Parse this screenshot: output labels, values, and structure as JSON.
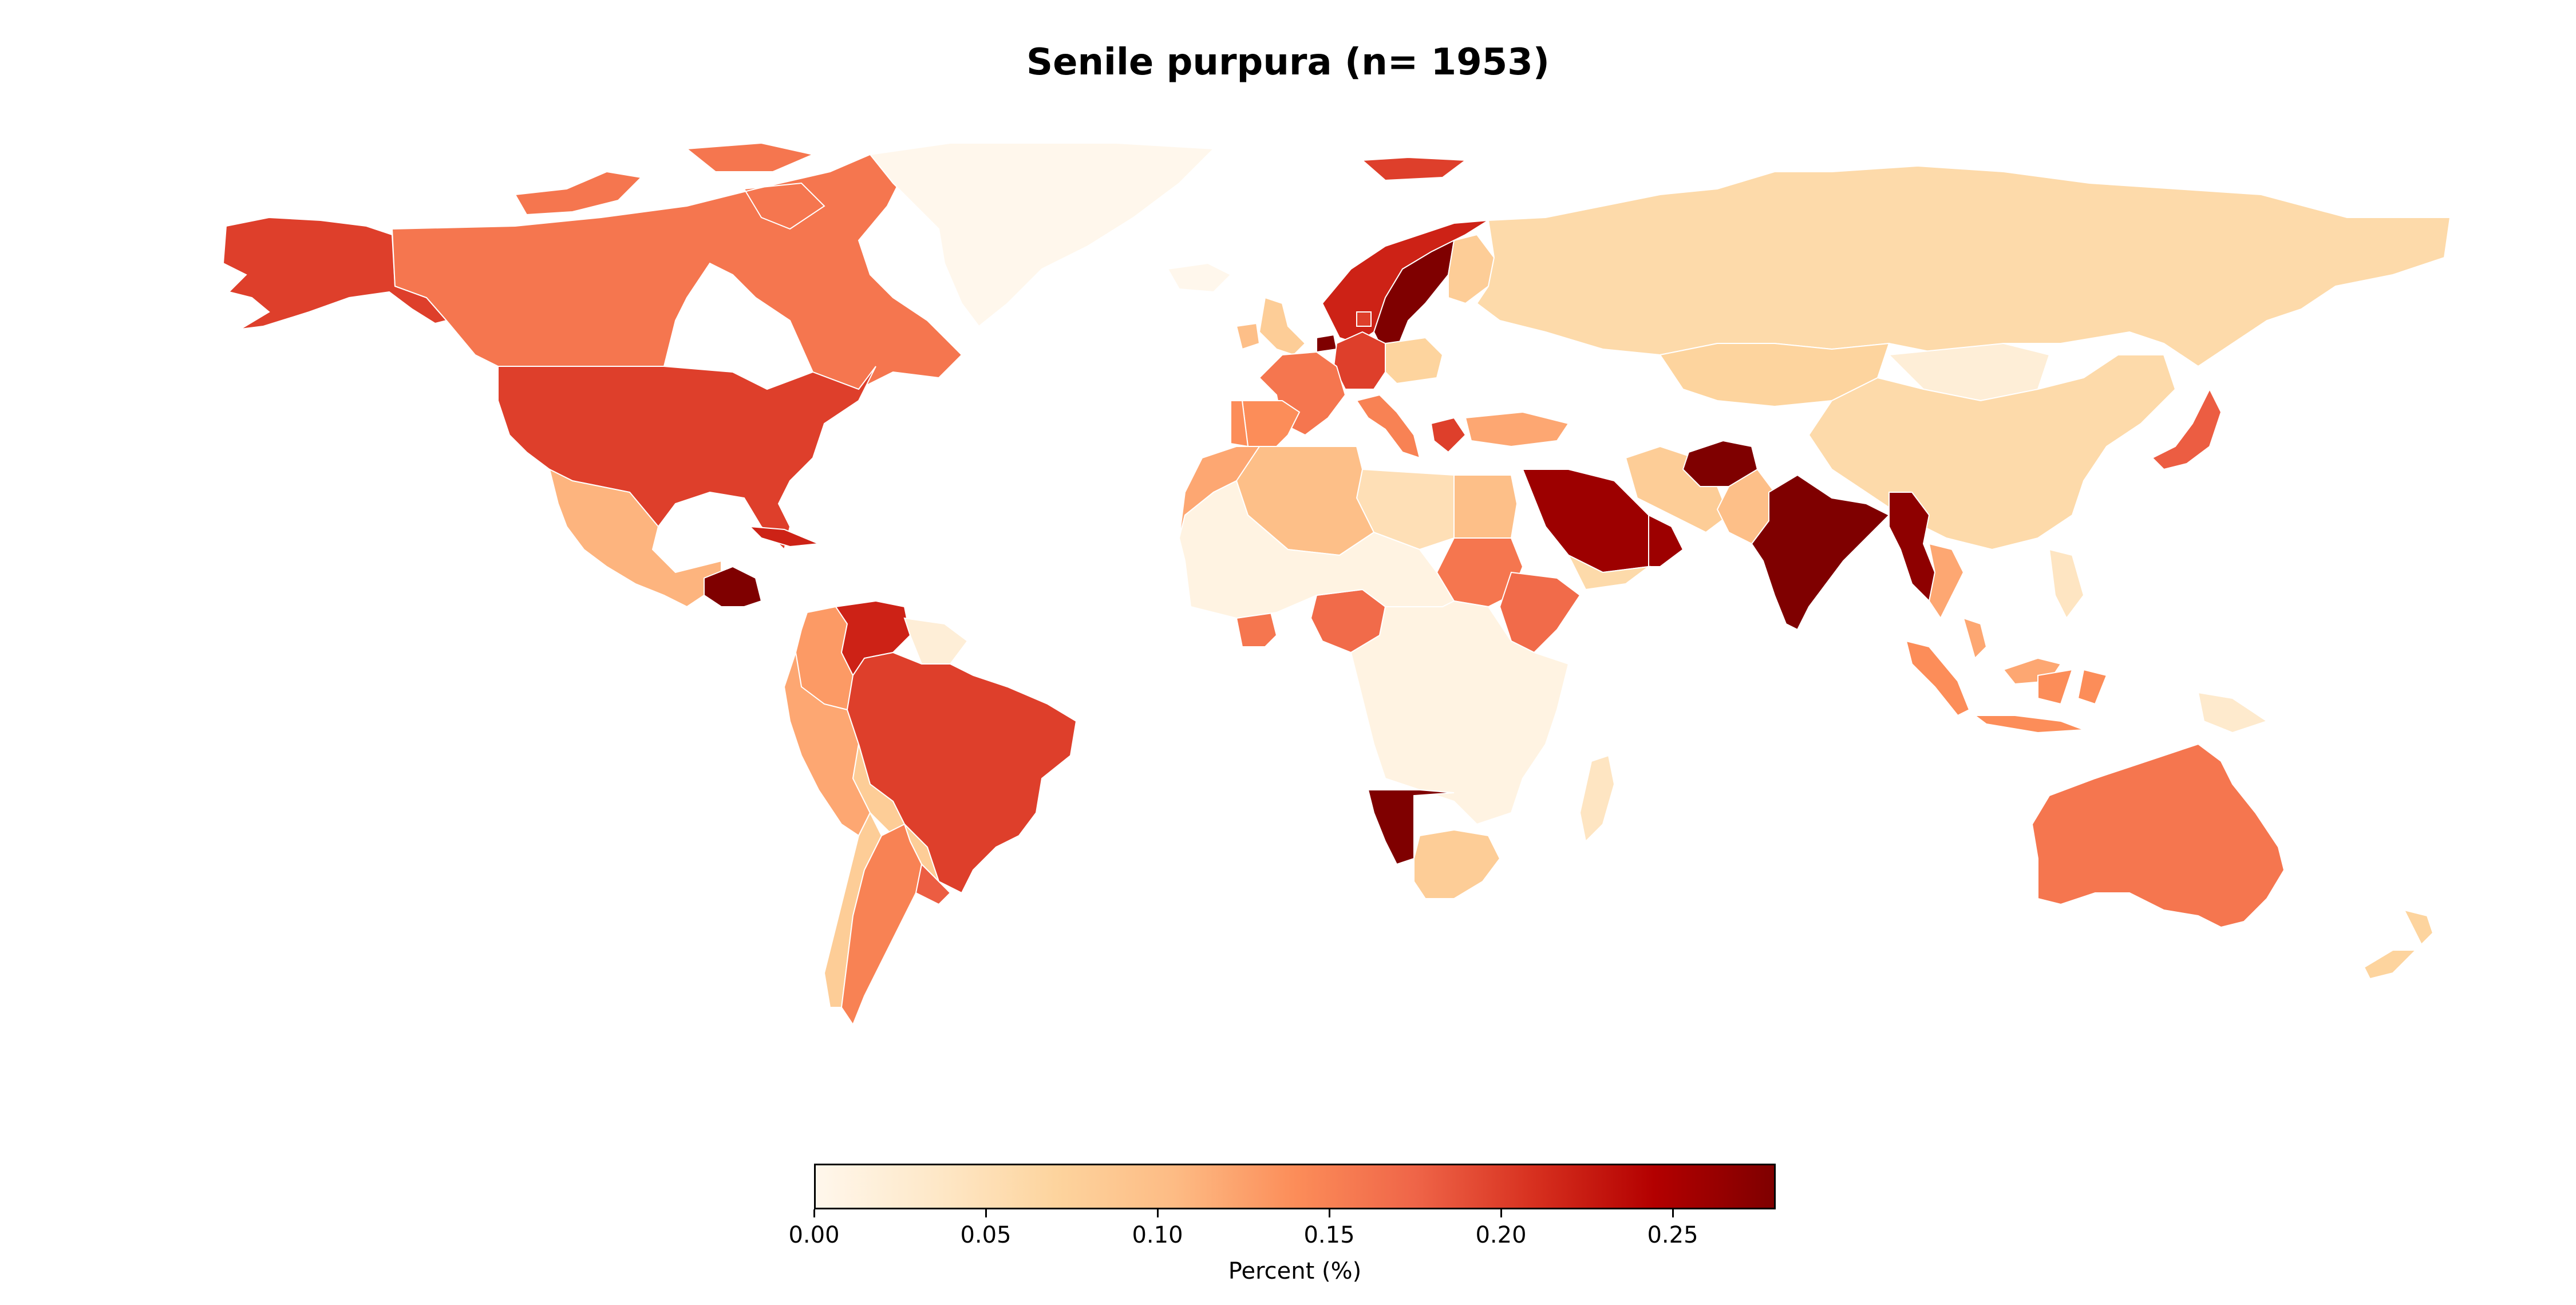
{
  "title": "Senile purpura (n= 1953)",
  "colorbar": {
    "label": "Percent (%)",
    "min": 0.0,
    "max": 0.28,
    "ticks": [
      "0.00",
      "0.05",
      "0.10",
      "0.15",
      "0.20",
      "0.25"
    ],
    "tick_values": [
      0.0,
      0.05,
      0.1,
      0.15,
      0.2,
      0.25
    ],
    "colormap": "OrRd",
    "stops": [
      "#fff7ec",
      "#fee8c8",
      "#fdd49e",
      "#fdbb84",
      "#fc8d59",
      "#ef6548",
      "#d7301f",
      "#b30000",
      "#7f0000"
    ]
  },
  "chart_data": {
    "type": "choropleth",
    "title": "Senile purpura (n= 1953)",
    "value_label": "Percent (%)",
    "range": [
      0.0,
      0.28
    ],
    "values": {
      "Canada": 0.16,
      "United States": 0.2,
      "Alaska (United States)": 0.2,
      "Greenland": 0.0,
      "Mexico": 0.11,
      "Guatemala / Honduras": 0.28,
      "Cuba": 0.22,
      "Colombia": 0.13,
      "Venezuela": 0.22,
      "Guyana / Suriname": 0.02,
      "Ecuador / Peru": 0.12,
      "Brazil": 0.2,
      "Bolivia": 0.08,
      "Paraguay": 0.08,
      "Chile": 0.08,
      "Argentina": 0.15,
      "Uruguay": 0.18,
      "Iceland": 0.0,
      "Svalbard": 0.2,
      "Norway": 0.22,
      "Sweden": 0.28,
      "Finland": 0.08,
      "United Kingdom": 0.08,
      "Ireland": 0.1,
      "France": 0.16,
      "Spain": 0.14,
      "Portugal": 0.14,
      "Germany": 0.2,
      "Netherlands": 0.28,
      "Denmark": 0.2,
      "Italy": 0.15,
      "Poland": 0.07,
      "Greece": 0.2,
      "Turkey": 0.12,
      "Russia": 0.06,
      "Kazakhstan": 0.07,
      "China": 0.06,
      "Mongolia": 0.02,
      "Japan": 0.18,
      "India": 0.28,
      "Afghanistan": 0.28,
      "Pakistan": 0.1,
      "Saudi Arabia": 0.26,
      "Yemen": 0.06,
      "Oman": 0.26,
      "Iran": 0.08,
      "Myanmar": 0.27,
      "Thailand": 0.12,
      "Malaysia": 0.12,
      "Philippines": 0.04,
      "Indonesia": 0.14,
      "Papua New Guinea": 0.03,
      "Australia": 0.16,
      "New Zealand": 0.07,
      "Morocco": 0.12,
      "Algeria": 0.1,
      "Libya": 0.05,
      "Egypt": 0.1,
      "Sudan": 0.16,
      "Ethiopia": 0.17,
      "Nigeria": 0.17,
      "Cote d'Ivoire": 0.16,
      "West Africa (other)": 0.01,
      "Central Africa": 0.01,
      "Namibia": 0.28,
      "South Africa": 0.08,
      "Madagascar": 0.04
    }
  }
}
